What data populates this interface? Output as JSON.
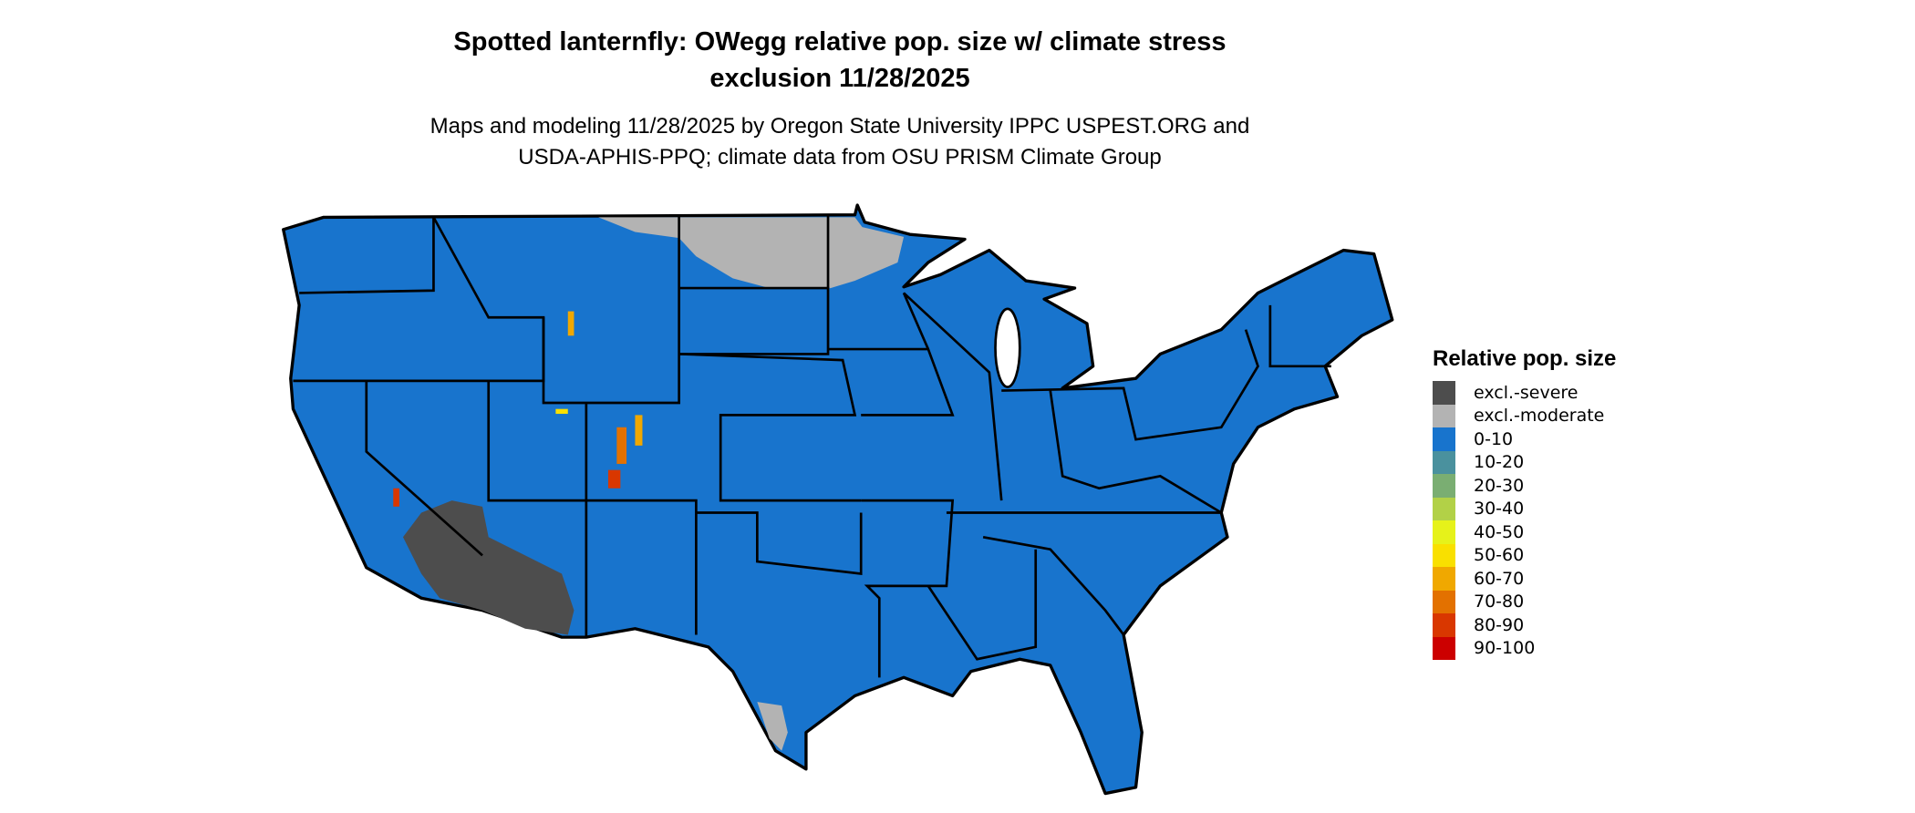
{
  "title_line1": "Spotted lanternfly: OWegg relative pop. size w/ climate stress",
  "title_line2": "exclusion 11/28/2025",
  "subtitle_line1": "Maps and modeling 11/28/2025 by Oregon State University IPPC USPEST.ORG and",
  "subtitle_line2": "USDA-APHIS-PPQ; climate data from OSU PRISM Climate Group",
  "map": {
    "region": "Contiguous United States",
    "dominant_class": "0-10",
    "state_border_color": "#000000"
  },
  "legend": {
    "title": "Relative pop. size",
    "items": [
      {
        "label": "excl.-severe",
        "color": "#4d4d4d"
      },
      {
        "label": "excl.-moderate",
        "color": "#b3b3b3"
      },
      {
        "label": "0-10",
        "color": "#1874cd"
      },
      {
        "label": "10-20",
        "color": "#4a919e"
      },
      {
        "label": "20-30",
        "color": "#7aae72"
      },
      {
        "label": "30-40",
        "color": "#b2d147"
      },
      {
        "label": "40-50",
        "color": "#e6f21a"
      },
      {
        "label": "50-60",
        "color": "#f9e000"
      },
      {
        "label": "60-70",
        "color": "#f0a800"
      },
      {
        "label": "70-80",
        "color": "#e37100"
      },
      {
        "label": "80-90",
        "color": "#d93700"
      },
      {
        "label": "90-100",
        "color": "#cc0000"
      }
    ]
  }
}
